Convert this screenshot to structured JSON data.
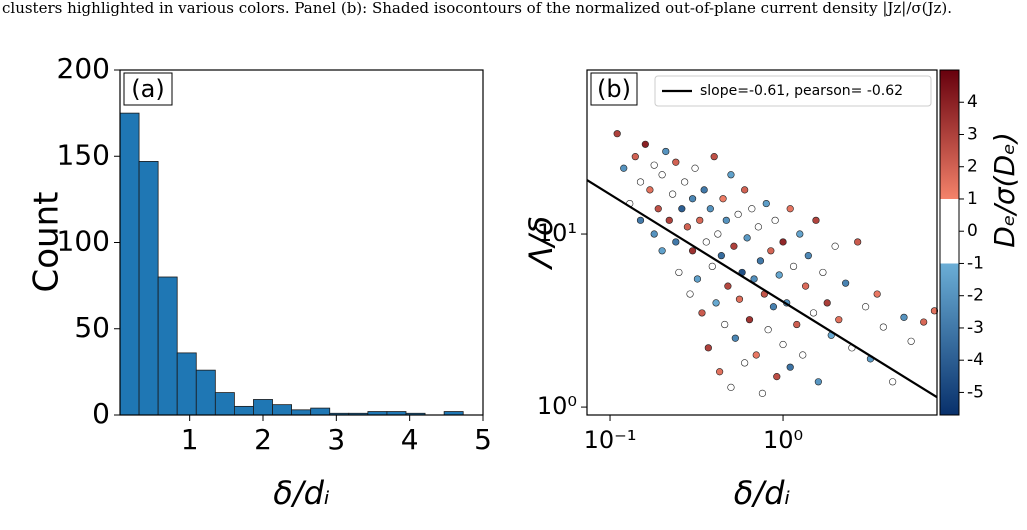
{
  "caption": "clusters highlighted in various colors. Panel (b): Shaded isocontours of the normalized out-of-plane current density |Jz|/σ(Jz).",
  "chart_data": [
    {
      "type": "histogram",
      "title": "(a)",
      "x_label": "δ/dᵢ",
      "y_label": "Count",
      "color": "#1f77b4",
      "bins": [
        0.05,
        0.31,
        0.57,
        0.83,
        1.09,
        1.35,
        1.61,
        1.87,
        2.13,
        2.39,
        2.65,
        2.91,
        3.17,
        3.43,
        3.69,
        3.95,
        4.21,
        4.47,
        4.73,
        4.99
      ],
      "values": [
        175,
        147,
        80,
        36,
        26,
        13,
        5,
        9,
        6,
        3,
        4,
        1,
        1,
        2,
        2,
        1,
        0,
        2,
        0
      ],
      "xlim": [
        0.05,
        5
      ],
      "ylim": [
        0,
        200
      ],
      "xticks": [
        1,
        2,
        3,
        4,
        5
      ],
      "yticks": [
        0,
        50,
        100,
        150,
        200
      ]
    },
    {
      "type": "scatter",
      "title": "(b)",
      "x_label": "δ/dᵢ",
      "y_label": "Λ/δ",
      "log_x": true,
      "log_y": true,
      "xlim": [
        0.0736,
        7.76
      ],
      "ylim": [
        0.9,
        88.7
      ],
      "xticks": [
        {
          "value": 0.1,
          "label": "10⁻¹"
        },
        {
          "value": 1,
          "label": "10⁰"
        }
      ],
      "yticks": [
        {
          "value": 1,
          "label": "10⁰"
        },
        {
          "value": 10,
          "label": "10¹"
        }
      ],
      "x": [
        0.11,
        0.12,
        0.13,
        0.14,
        0.15,
        0.15,
        0.16,
        0.17,
        0.18,
        0.18,
        0.19,
        0.2,
        0.2,
        0.21,
        0.22,
        0.23,
        0.24,
        0.24,
        0.25,
        0.26,
        0.27,
        0.28,
        0.29,
        0.3,
        0.3,
        0.31,
        0.32,
        0.33,
        0.34,
        0.35,
        0.36,
        0.37,
        0.38,
        0.39,
        0.4,
        0.41,
        0.42,
        0.43,
        0.44,
        0.45,
        0.46,
        0.47,
        0.48,
        0.5,
        0.5,
        0.52,
        0.53,
        0.55,
        0.56,
        0.58,
        0.6,
        0.6,
        0.62,
        0.64,
        0.66,
        0.68,
        0.7,
        0.72,
        0.74,
        0.76,
        0.78,
        0.8,
        0.82,
        0.85,
        0.88,
        0.9,
        0.92,
        0.95,
        1.0,
        1.0,
        1.05,
        1.1,
        1.1,
        1.15,
        1.2,
        1.25,
        1.3,
        1.35,
        1.4,
        1.5,
        1.55,
        1.6,
        1.7,
        1.8,
        1.9,
        2.0,
        2.1,
        2.3,
        2.5,
        2.7,
        3.0,
        3.2,
        3.5,
        3.8,
        4.3,
        5.0,
        5.5,
        6.5,
        7.5
      ],
      "values": [
        38,
        24,
        15,
        28,
        12,
        20,
        33,
        18,
        10,
        25,
        14,
        8,
        22,
        30,
        12,
        17,
        9,
        26,
        6,
        14,
        20,
        11,
        4.5,
        16,
        8,
        24,
        5.5,
        12,
        3.5,
        18,
        9,
        2.2,
        14,
        6.5,
        28,
        4,
        10,
        1.6,
        7.5,
        16,
        3,
        12,
        5,
        22,
        1.3,
        8.5,
        2.5,
        13,
        4.2,
        6,
        18,
        1.8,
        9.5,
        3.2,
        14,
        5.5,
        2,
        11,
        7,
        1.2,
        4.5,
        15,
        2.8,
        8,
        3.8,
        12,
        1.5,
        5.8,
        9,
        2.3,
        4,
        14,
        1.7,
        6.5,
        3,
        10,
        2,
        5,
        7.5,
        3.5,
        12,
        1.4,
        6,
        4,
        2.6,
        8.5,
        3.2,
        5.2,
        2.2,
        9,
        3.8,
        1.9,
        4.5,
        2.9,
        1.4,
        3.3,
        2.4,
        3.1,
        3.6
      ],
      "color_values": [
        3,
        -2,
        0.5,
        2,
        -3,
        0,
        4,
        1.5,
        -2,
        0,
        2.5,
        -1.5,
        0.3,
        -2,
        3,
        0,
        -3,
        2,
        1,
        -4,
        0.4,
        2,
        0,
        -2.5,
        3.5,
        0,
        -1.5,
        1.8,
        2.2,
        -3,
        0,
        3,
        -2,
        0.7,
        2.5,
        -1.2,
        0,
        1.5,
        -3.5,
        1.2,
        0,
        -2,
        2.8,
        -1.5,
        0,
        3,
        -2.5,
        0,
        1.6,
        -4.5,
        2,
        0.5,
        -1.8,
        3.4,
        0,
        -2.2,
        1.3,
        0.2,
        -3,
        0,
        2.4,
        -1.6,
        0,
        1.9,
        -2.7,
        0,
        2.6,
        -1.3,
        3.8,
        0,
        -2,
        1.4,
        -3.2,
        0,
        2.1,
        -1.4,
        0,
        1.7,
        -2.4,
        0,
        2.9,
        -1.9,
        0,
        3.1,
        -1.1,
        0,
        1.5,
        -2.6,
        0,
        2.2,
        0,
        -1.7,
        1.3,
        0,
        0,
        -2,
        0,
        1.8,
        1.5
      ],
      "lines": [
        {
          "name": "slope=-0.61, pearson= -0.62",
          "color": "#000000",
          "x": [
            0.0736,
            7.76
          ],
          "values": [
            20.5,
            1.14
          ]
        }
      ],
      "legend": "upper right",
      "colorbar": {
        "label": "Dₑ/σ(Dₑ)",
        "lim": [
          -5.7,
          5
        ],
        "ticks": [
          -5,
          -4,
          -3,
          -2,
          -1,
          0,
          1,
          2,
          3,
          4
        ],
        "colorscale": [
          {
            "value": -5.7,
            "color": "#08306b"
          },
          {
            "value": -1,
            "color": "#6baed6"
          },
          {
            "value": -1,
            "color": "#ffffff"
          },
          {
            "value": 1,
            "color": "#ffffff"
          },
          {
            "value": 1,
            "color": "#f4826a"
          },
          {
            "value": 5,
            "color": "#67000d"
          }
        ]
      }
    }
  ]
}
